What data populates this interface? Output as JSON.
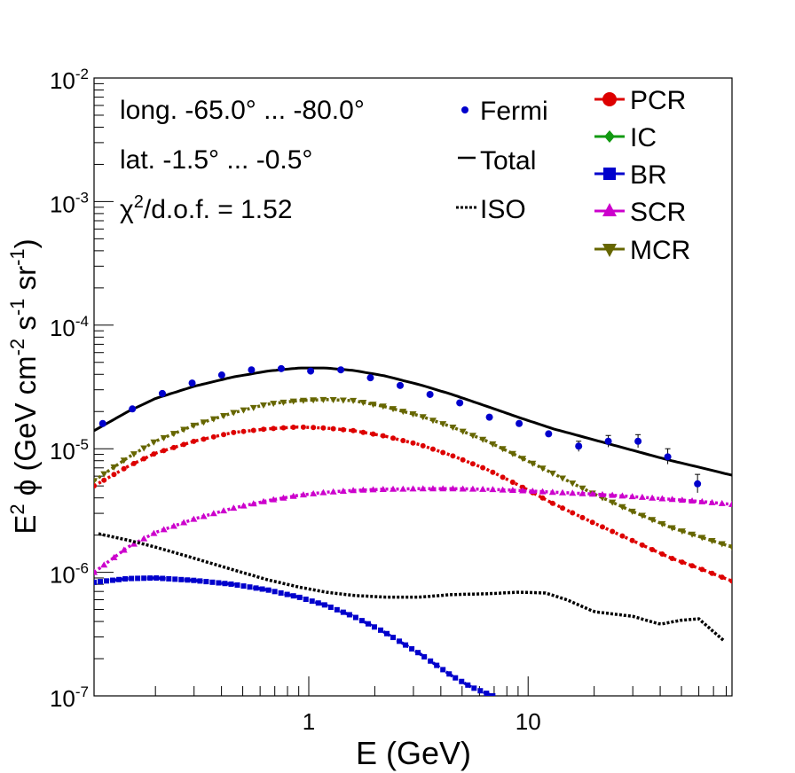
{
  "chart_data": {
    "type": "line",
    "xscale": "log",
    "yscale": "log",
    "xlim": [
      0.105,
      85
    ],
    "ylim": [
      1e-07,
      0.01
    ],
    "xlabel": "E (GeV)",
    "ylabel": {
      "base": "E",
      "exp": "2",
      "rest": " ϕ (GeV cm",
      "u1": "-2",
      "s": " s",
      "u2": "-1",
      "sr": " sr",
      "u3": "-1",
      "close": ")"
    },
    "x_ticks": [
      {
        "value": 1,
        "label": "1"
      },
      {
        "value": 10,
        "label": "10"
      }
    ],
    "y_ticks": [
      {
        "value": 0.01,
        "base": "10",
        "exp": "-2"
      },
      {
        "value": 0.001,
        "base": "10",
        "exp": "-3"
      },
      {
        "value": 0.0001,
        "base": "10",
        "exp": "-4"
      },
      {
        "value": 1e-05,
        "base": "10",
        "exp": "-5"
      },
      {
        "value": 1e-06,
        "base": "10",
        "exp": "-6"
      },
      {
        "value": 1e-07,
        "base": "10",
        "exp": "-7"
      }
    ],
    "annotations": {
      "longitude": "long. -65.0° ... -80.0°",
      "latitude": "lat. -1.5° ... -0.5°",
      "chi2_sym": "χ",
      "chi2_exp": "2",
      "chi2_rest": "/d.o.f. = 1.52"
    },
    "legend_left": [
      {
        "key": "fermi",
        "label": "Fermi",
        "color": "#0000cc",
        "style": "dot"
      },
      {
        "key": "total",
        "label": "Total",
        "color": "#000000",
        "style": "line"
      },
      {
        "key": "iso",
        "label": "ISO",
        "color": "#000000",
        "style": "dotted"
      }
    ],
    "legend_right": [
      {
        "key": "pcr",
        "label": "PCR",
        "color": "#dd0000",
        "style": "circle"
      },
      {
        "key": "ic",
        "label": "IC",
        "color": "#119911",
        "style": "diamond"
      },
      {
        "key": "br",
        "label": "BR",
        "color": "#0000cc",
        "style": "square"
      },
      {
        "key": "scr",
        "label": "SCR",
        "color": "#cc00cc",
        "style": "triangle-up"
      },
      {
        "key": "mcr",
        "label": "MCR",
        "color": "#666600",
        "style": "triangle-down"
      }
    ],
    "fermi": {
      "name": "Fermi",
      "color": "#0000cc",
      "x": [
        0.115,
        0.157,
        0.215,
        0.294,
        0.401,
        0.548,
        0.749,
        1.02,
        1.4,
        1.91,
        2.61,
        3.57,
        4.88,
        6.66,
        9.1,
        12.4,
        17.0,
        23.2,
        31.7,
        43.3,
        59.2,
        80.8
      ],
      "y": [
        1.6e-05,
        2.1e-05,
        2.8e-05,
        3.4e-05,
        3.95e-05,
        4.35e-05,
        4.45e-05,
        4.25e-05,
        4.35e-05,
        3.75e-05,
        3.25e-05,
        2.75e-05,
        2.35e-05,
        1.8e-05,
        1.6e-05,
        1.32e-05,
        1.05e-05,
        1.15e-05,
        1.15e-05,
        8.6e-06,
        5.2e-06,
        null
      ],
      "err_up": [
        null,
        null,
        null,
        null,
        null,
        null,
        null,
        null,
        null,
        null,
        null,
        null,
        null,
        null,
        null,
        null,
        1.15e-05,
        1.28e-05,
        1.3e-05,
        1e-05,
        6.2e-06,
        null
      ],
      "err_dn": [
        null,
        null,
        null,
        null,
        null,
        null,
        null,
        null,
        null,
        null,
        null,
        null,
        null,
        null,
        null,
        null,
        9.5e-06,
        1.03e-05,
        1.02e-05,
        7.5e-06,
        4.4e-06,
        null
      ]
    },
    "series": [
      {
        "name": "Total",
        "key": "total",
        "color": "#000000",
        "style": "solid",
        "x": [
          0.105,
          0.15,
          0.2,
          0.3,
          0.45,
          0.65,
          0.9,
          1.2,
          1.6,
          2.2,
          3.2,
          4.5,
          6.5,
          9,
          13,
          20,
          30,
          45,
          60,
          85
        ],
        "y": [
          1.4e-05,
          2e-05,
          2.55e-05,
          3.2e-05,
          3.8e-05,
          4.25e-05,
          4.5e-05,
          4.5e-05,
          4.3e-05,
          3.9e-05,
          3.3e-05,
          2.75e-05,
          2.2e-05,
          1.8e-05,
          1.45e-05,
          1.18e-05,
          9.7e-06,
          8e-06,
          7.1e-06,
          6.1e-06
        ]
      },
      {
        "name": "MCR",
        "key": "mcr",
        "color": "#666600",
        "style": "markers",
        "marker": "triangle-down",
        "x": [
          0.105,
          0.15,
          0.2,
          0.3,
          0.45,
          0.65,
          0.9,
          1.2,
          1.6,
          2.2,
          3.2,
          4.5,
          6.5,
          9,
          13,
          20,
          30,
          45,
          60,
          85
        ],
        "y": [
          5.5e-06,
          8.5e-06,
          1.15e-05,
          1.55e-05,
          1.95e-05,
          2.3e-05,
          2.45e-05,
          2.5e-05,
          2.45e-05,
          2.2e-05,
          1.85e-05,
          1.5e-05,
          1.15e-05,
          8.7e-06,
          6.3e-06,
          4.3e-06,
          3.1e-06,
          2.3e-06,
          1.95e-06,
          1.6e-06
        ]
      },
      {
        "name": "PCR",
        "key": "pcr",
        "color": "#dd0000",
        "style": "markers",
        "marker": "circle",
        "x": [
          0.105,
          0.15,
          0.2,
          0.3,
          0.45,
          0.65,
          0.9,
          1.2,
          1.6,
          2.2,
          3.2,
          4.5,
          6.5,
          9,
          13,
          20,
          30,
          45,
          60,
          85
        ],
        "y": [
          5e-06,
          7.2e-06,
          9.2e-06,
          1.15e-05,
          1.35e-05,
          1.45e-05,
          1.5e-05,
          1.47e-05,
          1.4e-05,
          1.27e-05,
          1.08e-05,
          8.8e-06,
          6.8e-06,
          5.1e-06,
          3.6e-06,
          2.5e-06,
          1.8e-06,
          1.3e-06,
          1.08e-06,
          8.5e-07
        ]
      },
      {
        "name": "SCR",
        "key": "scr",
        "color": "#cc00cc",
        "style": "markers",
        "marker": "triangle-up",
        "x": [
          0.105,
          0.15,
          0.2,
          0.3,
          0.45,
          0.65,
          0.9,
          1.2,
          1.6,
          2.2,
          3.2,
          4.5,
          6.5,
          9,
          13,
          20,
          30,
          45,
          60,
          85
        ],
        "y": [
          1e-06,
          1.6e-06,
          2.1e-06,
          2.7e-06,
          3.3e-06,
          3.8e-06,
          4.2e-06,
          4.45e-06,
          4.6e-06,
          4.7e-06,
          4.75e-06,
          4.75e-06,
          4.7e-06,
          4.6e-06,
          4.45e-06,
          4.3e-06,
          4.1e-06,
          3.9e-06,
          3.75e-06,
          3.55e-06
        ]
      },
      {
        "name": "ISO",
        "key": "iso",
        "color": "#000000",
        "style": "dotted",
        "x": [
          0.11,
          0.15,
          0.2,
          0.3,
          0.45,
          0.65,
          0.9,
          1.2,
          1.6,
          2.2,
          3.2,
          4.5,
          6.5,
          9,
          12,
          15,
          20,
          30,
          40,
          50,
          60,
          78
        ],
        "y": [
          2.05e-06,
          1.82e-06,
          1.6e-06,
          1.3e-06,
          1.05e-06,
          8.7e-07,
          7.6e-07,
          6.9e-07,
          6.5e-07,
          6.3e-07,
          6.3e-07,
          6.6e-07,
          6.7e-07,
          6.9e-07,
          6.8e-07,
          6e-07,
          4.8e-07,
          4.4e-07,
          3.8e-07,
          4.1e-07,
          4.2e-07,
          2.8e-07
        ]
      },
      {
        "name": "BR",
        "key": "br",
        "color": "#0000cc",
        "style": "markers",
        "marker": "square",
        "x": [
          0.105,
          0.15,
          0.2,
          0.3,
          0.45,
          0.65,
          0.9,
          1.2,
          1.6,
          2.2,
          3.2,
          4.5,
          5.5,
          6.9
        ],
        "y": [
          8.3e-07,
          8.9e-07,
          9e-07,
          8.6e-07,
          8e-07,
          7.2e-07,
          6.3e-07,
          5.4e-07,
          4.4e-07,
          3.3e-07,
          2.2e-07,
          1.45e-07,
          1.18e-07,
          1e-07
        ]
      }
    ]
  }
}
